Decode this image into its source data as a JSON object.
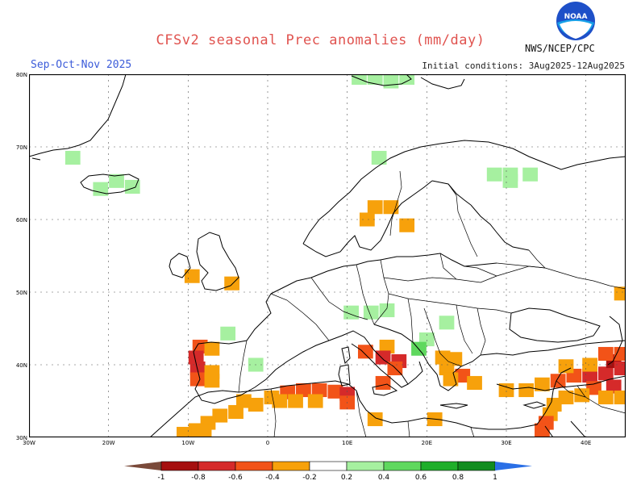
{
  "header": {
    "title": "CFSv2 seasonal Prec anomalies (mm/day)",
    "season": "Sep-Oct-Nov 2025",
    "initial_conditions": "Initial conditions: 3Aug2025-12Aug2025",
    "agency": "NWS/NCEP/CPC"
  },
  "logo": {
    "text": "NOAA"
  },
  "map": {
    "lat_labels": [
      "80N",
      "70N",
      "60N",
      "50N",
      "40N",
      "30N"
    ],
    "lon_labels": [
      "30W",
      "20W",
      "10W",
      "0",
      "10E",
      "20E",
      "30E",
      "40E"
    ],
    "lat_range": [
      30,
      80
    ],
    "lon_range": [
      -30,
      45
    ],
    "grid": true,
    "anomalies": [
      {
        "lon": -24.5,
        "lat": 68.5,
        "cat": "p2"
      },
      {
        "lon": -19,
        "lat": 65.3,
        "cat": "p2"
      },
      {
        "lon": -17,
        "lat": 64.5,
        "cat": "p2"
      },
      {
        "lon": -21,
        "lat": 64.2,
        "cat": "p2"
      },
      {
        "lon": 11.5,
        "lat": 79.5,
        "cat": "p2"
      },
      {
        "lon": 13.5,
        "lat": 79.5,
        "cat": "p2"
      },
      {
        "lon": 15.5,
        "lat": 79.0,
        "cat": "p2"
      },
      {
        "lon": 17.5,
        "lat": 79.5,
        "cat": "p2"
      },
      {
        "lon": 14.0,
        "lat": 68.5,
        "cat": "p2"
      },
      {
        "lon": 28.5,
        "lat": 66.2,
        "cat": "p2"
      },
      {
        "lon": 30.5,
        "lat": 66.2,
        "cat": "p2"
      },
      {
        "lon": 33.0,
        "lat": 66.2,
        "cat": "p2"
      },
      {
        "lon": 30.5,
        "lat": 65.3,
        "cat": "p2"
      },
      {
        "lon": 13.5,
        "lat": 61.7,
        "cat": "n2"
      },
      {
        "lon": 15.5,
        "lat": 61.7,
        "cat": "n2"
      },
      {
        "lon": 12.5,
        "lat": 60.0,
        "cat": "n2"
      },
      {
        "lon": 17.5,
        "lat": 59.2,
        "cat": "n2"
      },
      {
        "lon": -9.5,
        "lat": 52.2,
        "cat": "n2"
      },
      {
        "lon": -4.5,
        "lat": 51.2,
        "cat": "n2"
      },
      {
        "lon": 44.5,
        "lat": 49.8,
        "cat": "n2"
      },
      {
        "lon": 10.5,
        "lat": 47.2,
        "cat": "p2"
      },
      {
        "lon": 13.0,
        "lat": 47.2,
        "cat": "p2"
      },
      {
        "lon": 15.0,
        "lat": 47.5,
        "cat": "p2"
      },
      {
        "lon": -5.0,
        "lat": 44.3,
        "cat": "p2"
      },
      {
        "lon": 20.0,
        "lat": 43.5,
        "cat": "p2"
      },
      {
        "lon": 19.0,
        "lat": 42.2,
        "cat": "p4"
      },
      {
        "lon": 22.5,
        "lat": 45.8,
        "cat": "p2"
      },
      {
        "lon": -1.5,
        "lat": 40.0,
        "cat": "p2"
      },
      {
        "lon": 15.0,
        "lat": 42.5,
        "cat": "n2"
      },
      {
        "lon": 12.3,
        "lat": 41.8,
        "cat": "n4"
      },
      {
        "lon": 14.5,
        "lat": 41.0,
        "cat": "n6"
      },
      {
        "lon": 16.5,
        "lat": 40.5,
        "cat": "n6"
      },
      {
        "lon": 16.0,
        "lat": 39.5,
        "cat": "n4"
      },
      {
        "lon": 14.5,
        "lat": 37.5,
        "cat": "n4"
      },
      {
        "lon": 22.0,
        "lat": 41.0,
        "cat": "n2"
      },
      {
        "lon": 23.5,
        "lat": 40.8,
        "cat": "n2"
      },
      {
        "lon": 22.5,
        "lat": 39.5,
        "cat": "n2"
      },
      {
        "lon": 24.5,
        "lat": 38.5,
        "cat": "n4"
      },
      {
        "lon": 23.0,
        "lat": 38.0,
        "cat": "n2"
      },
      {
        "lon": 26.0,
        "lat": 37.5,
        "cat": "n2"
      },
      {
        "lon": -8.5,
        "lat": 42.5,
        "cat": "n4"
      },
      {
        "lon": -9.0,
        "lat": 41.0,
        "cat": "n6"
      },
      {
        "lon": -8.8,
        "lat": 39.5,
        "cat": "n6"
      },
      {
        "lon": -8.8,
        "lat": 38.0,
        "cat": "n4"
      },
      {
        "lon": -7.0,
        "lat": 42.2,
        "cat": "n2"
      },
      {
        "lon": -7.0,
        "lat": 39.0,
        "cat": "n2"
      },
      {
        "lon": -7.0,
        "lat": 37.8,
        "cat": "n2"
      },
      {
        "lon": 0.5,
        "lat": 35.5,
        "cat": "n2"
      },
      {
        "lon": 2.5,
        "lat": 36.2,
        "cat": "n4"
      },
      {
        "lon": 4.5,
        "lat": 36.5,
        "cat": "n4"
      },
      {
        "lon": 6.5,
        "lat": 36.5,
        "cat": "n4"
      },
      {
        "lon": 8.5,
        "lat": 36.3,
        "cat": "n4"
      },
      {
        "lon": 10.0,
        "lat": 36.0,
        "cat": "n6"
      },
      {
        "lon": 10.0,
        "lat": 34.8,
        "cat": "n4"
      },
      {
        "lon": 1.5,
        "lat": 35.0,
        "cat": "n2"
      },
      {
        "lon": 3.5,
        "lat": 35.0,
        "cat": "n2"
      },
      {
        "lon": 6.0,
        "lat": 35.0,
        "cat": "n2"
      },
      {
        "lon": -3.0,
        "lat": 35.0,
        "cat": "n2"
      },
      {
        "lon": -1.5,
        "lat": 34.5,
        "cat": "n2"
      },
      {
        "lon": -4.0,
        "lat": 33.5,
        "cat": "n2"
      },
      {
        "lon": -6.0,
        "lat": 33.0,
        "cat": "n2"
      },
      {
        "lon": -7.5,
        "lat": 32.0,
        "cat": "n2"
      },
      {
        "lon": -9.0,
        "lat": 31.0,
        "cat": "n2"
      },
      {
        "lon": -10.5,
        "lat": 30.5,
        "cat": "n2"
      },
      {
        "lon": -8.0,
        "lat": 30.8,
        "cat": "n2"
      },
      {
        "lon": 13.5,
        "lat": 32.5,
        "cat": "n2"
      },
      {
        "lon": 21.0,
        "lat": 32.5,
        "cat": "n2"
      },
      {
        "lon": 30.0,
        "lat": 36.5,
        "cat": "n2"
      },
      {
        "lon": 32.5,
        "lat": 36.5,
        "cat": "n2"
      },
      {
        "lon": 34.5,
        "lat": 37.3,
        "cat": "n2"
      },
      {
        "lon": 36.5,
        "lat": 37.8,
        "cat": "n4"
      },
      {
        "lon": 38.5,
        "lat": 38.5,
        "cat": "n4"
      },
      {
        "lon": 40.5,
        "lat": 38.5,
        "cat": "n6"
      },
      {
        "lon": 42.5,
        "lat": 38.8,
        "cat": "n6"
      },
      {
        "lon": 43.5,
        "lat": 40.5,
        "cat": "n8"
      },
      {
        "lon": 44.5,
        "lat": 39.5,
        "cat": "n6"
      },
      {
        "lon": 37.5,
        "lat": 39.8,
        "cat": "n2"
      },
      {
        "lon": 40.5,
        "lat": 40.0,
        "cat": "n2"
      },
      {
        "lon": 42.5,
        "lat": 41.5,
        "cat": "n4"
      },
      {
        "lon": 44.5,
        "lat": 41.5,
        "cat": "n4"
      },
      {
        "lon": 41.0,
        "lat": 36.8,
        "cat": "n4"
      },
      {
        "lon": 43.5,
        "lat": 37.0,
        "cat": "n6"
      },
      {
        "lon": 37.5,
        "lat": 35.5,
        "cat": "n2"
      },
      {
        "lon": 39.5,
        "lat": 35.8,
        "cat": "n2"
      },
      {
        "lon": 36.0,
        "lat": 34.5,
        "cat": "n2"
      },
      {
        "lon": 35.5,
        "lat": 33.2,
        "cat": "n2"
      },
      {
        "lon": 35.0,
        "lat": 32.0,
        "cat": "n4"
      },
      {
        "lon": 34.5,
        "lat": 31.0,
        "cat": "n4"
      },
      {
        "lon": 44.5,
        "lat": 35.5,
        "cat": "n2"
      },
      {
        "lon": 42.5,
        "lat": 35.5,
        "cat": "n2"
      }
    ]
  },
  "colorbar": {
    "labels": [
      "-1",
      "-0.8",
      "-0.6",
      "-0.4",
      "-0.2",
      "0.2",
      "0.4",
      "0.6",
      "0.8",
      "1"
    ],
    "colors": {
      "n10": "#7a4a3a",
      "n8": "#a50f0f",
      "n6": "#d52a2a",
      "n4": "#f25318",
      "n2": "#f7a10b",
      "zero": "#ffffff",
      "p2": "#a6f0a0",
      "p4": "#5fd85e",
      "p6": "#1fae2a",
      "p8": "#118c1f",
      "p10": "#2a6fe6"
    }
  }
}
